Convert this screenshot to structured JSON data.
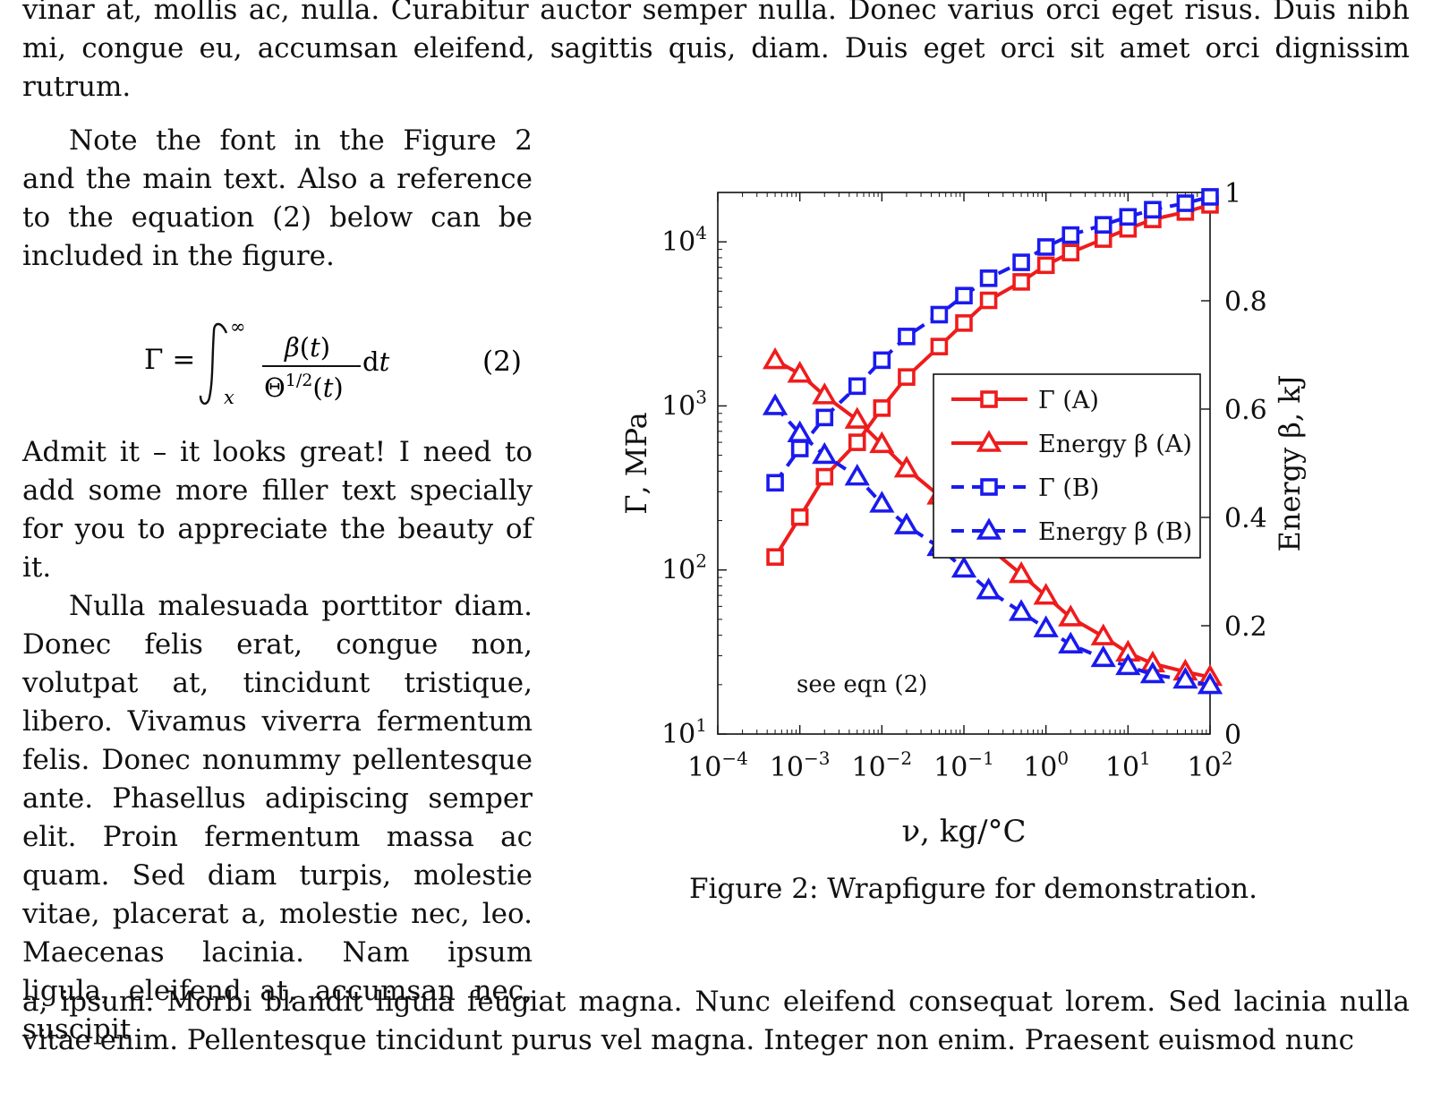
{
  "text": {
    "top": "vinar at, mollis ac, nulla. Curabitur auctor semper nulla. Donec varius orci eget risus. Duis nibh mi, congue eu, accumsan eleifend, sagittis quis, diam. Duis eget orci sit amet orci dignissim rutrum.",
    "left_para1": "Note the font in the Figure 2 and the main text. Also a reference to the equation (2) below can be included in the figure.",
    "equation_number": "(2)",
    "left_para2": "Admit it – it looks great! I need to add some more filler text specially for you to appreciate the beauty of it.",
    "left_para3": "Nulla malesuada porttitor diam. Donec felis erat, congue non, volutpat at, tincidunt tristique, libero. Vivamus viverra fermentum felis. Donec nonummy pellentesque ante. Phasellus adipiscing semper elit. Proin fermentum massa ac quam. Sed diam turpis, molestie vitae, placerat a, molestie nec, leo. Maecenas lacinia. Nam ipsum ligula, eleifend at, accumsan nec, suscipit",
    "bottom": "a, ipsum. Morbi blandit ligula feugiat magna. Nunc eleifend consequat lorem. Sed lacinia nulla vitae enim. Pellentesque tincidunt purus vel magna. Integer non enim. Praesent euismod nunc"
  },
  "figure": {
    "caption": "Figure 2: Wrapfigure for demonstration.",
    "annotation": "see eqn (2)"
  },
  "chart_data": {
    "type": "line",
    "x_scale": "log",
    "xlabel": "ν, kg/°C",
    "ylabel_left": "Γ, MPa",
    "ylabel_right": "Energy β, kJ",
    "xlim": [
      0.0001,
      100
    ],
    "ylim_left": [
      10,
      20000
    ],
    "ylim_right": [
      0,
      1
    ],
    "y_left_scale": "log",
    "xticks": [
      "10^-4",
      "10^-3",
      "10^-2",
      "10^-1",
      "10^0",
      "10^1",
      "10^2"
    ],
    "yticks_left": [
      "10^1",
      "10^2",
      "10^3",
      "10^4"
    ],
    "yticks_right": [
      "0",
      "0.2",
      "0.4",
      "0.6",
      "0.8",
      "1"
    ],
    "legend_position": "center-right",
    "x": [
      0.0005,
      0.001,
      0.002,
      0.005,
      0.01,
      0.02,
      0.05,
      0.1,
      0.2,
      0.5,
      1,
      2,
      5,
      10,
      20,
      50,
      100
    ],
    "series": [
      {
        "name": "Γ (A)",
        "axis": "left",
        "marker": "square",
        "line": "solid",
        "color": "#ee1c1c",
        "values": [
          120,
          210,
          370,
          600,
          970,
          1500,
          2300,
          3200,
          4400,
          5700,
          7200,
          8600,
          10400,
          12000,
          13700,
          15200,
          16800
        ]
      },
      {
        "name": "Energy β (A)",
        "axis": "right",
        "marker": "triangle",
        "line": "solid",
        "color": "#ee1c1c",
        "values": [
          0.69,
          0.665,
          0.625,
          0.58,
          0.535,
          0.49,
          0.44,
          0.39,
          0.345,
          0.295,
          0.255,
          0.215,
          0.18,
          0.15,
          0.13,
          0.115,
          0.105
        ]
      },
      {
        "name": "Γ (B)",
        "axis": "left",
        "marker": "square",
        "line": "dashed",
        "color": "#1a1aee",
        "values": [
          340,
          550,
          850,
          1320,
          1900,
          2650,
          3600,
          4700,
          6000,
          7500,
          9300,
          11000,
          12700,
          14200,
          15700,
          17200,
          18800
        ]
      },
      {
        "name": "Energy β (B)",
        "axis": "right",
        "marker": "triangle",
        "line": "dashed",
        "color": "#1a1aee",
        "values": [
          0.605,
          0.555,
          0.515,
          0.475,
          0.425,
          0.385,
          0.345,
          0.305,
          0.265,
          0.225,
          0.195,
          0.165,
          0.14,
          0.125,
          0.11,
          0.1,
          0.09
        ]
      }
    ]
  }
}
